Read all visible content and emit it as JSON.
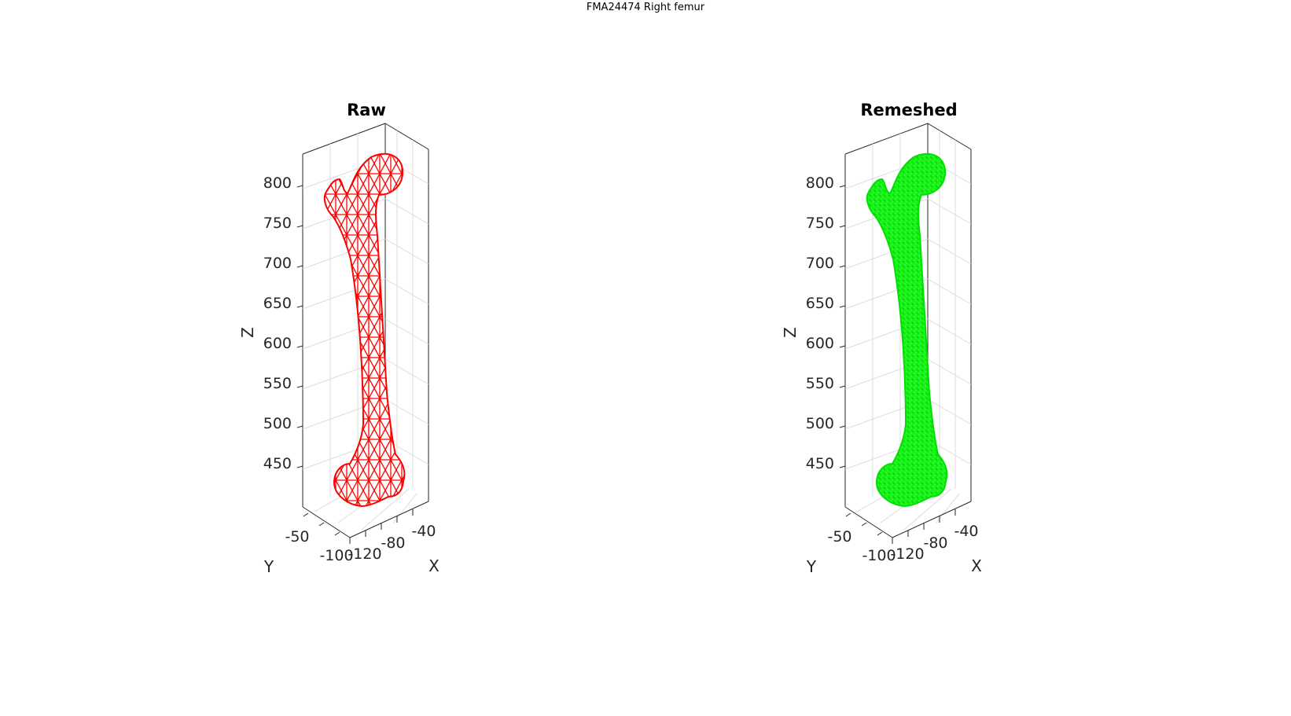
{
  "figure_title": "FMA24474 Right femur",
  "chart_data": [
    {
      "type": "mesh3d",
      "title": "Raw",
      "mesh_style": "coarse wireframe",
      "color": "#ff0000",
      "xlabel": "X",
      "ylabel": "Y",
      "zlabel": "Z",
      "x_ticks": [
        "-120",
        "-80",
        "-40"
      ],
      "y_ticks": [
        "-100",
        "-50"
      ],
      "z_ticks": [
        "450",
        "500",
        "550",
        "600",
        "650",
        "700",
        "750",
        "800"
      ],
      "zlim": [
        410,
        840
      ],
      "grid": true
    },
    {
      "type": "mesh3d",
      "title": "Remeshed",
      "mesh_style": "fine triangulated surface",
      "color": "#00ff00",
      "xlabel": "X",
      "ylabel": "Y",
      "zlabel": "Z",
      "x_ticks": [
        "-120",
        "-80",
        "-40"
      ],
      "y_ticks": [
        "-100",
        "-50"
      ],
      "z_ticks": [
        "450",
        "500",
        "550",
        "600",
        "650",
        "700",
        "750",
        "800"
      ],
      "zlim": [
        410,
        840
      ],
      "grid": true
    }
  ]
}
